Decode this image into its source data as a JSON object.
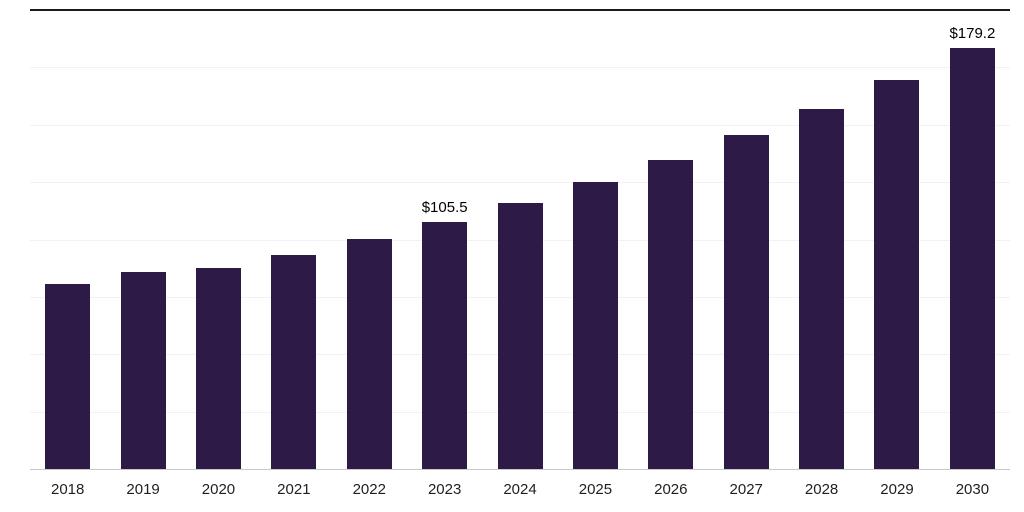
{
  "chart_data": {
    "type": "bar",
    "categories": [
      "2018",
      "2019",
      "2020",
      "2021",
      "2022",
      "2023",
      "2024",
      "2025",
      "2026",
      "2027",
      "2028",
      "2029",
      "2030"
    ],
    "values": [
      78.9,
      84.2,
      86.0,
      91.2,
      98.3,
      105.5,
      113.5,
      122.2,
      131.9,
      142.5,
      153.3,
      165.5,
      179.2
    ],
    "annotations": [
      {
        "category": "2023",
        "text": "$105.5"
      },
      {
        "category": "2030",
        "text": "$179.2"
      }
    ],
    "title": "",
    "xlabel": "",
    "ylabel": "",
    "ylim": [
      0,
      195
    ],
    "grid": "horizontal",
    "gridline_count": 7,
    "legend": "none",
    "bar_color": "#2e1a47",
    "axis_line_color": "#c9c9c9",
    "top_rule_color": "#1a1a1a"
  }
}
